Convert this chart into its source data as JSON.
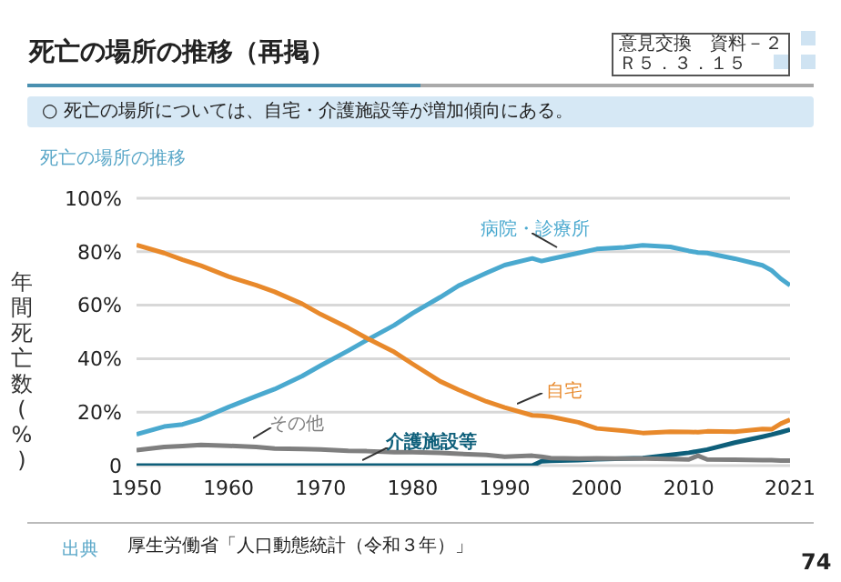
{
  "chart_data": {
    "type": "line",
    "title": "死亡の場所の推移（再掲）",
    "subtitle": "○ 死亡の場所については、自宅・介護施設等が増加傾向にある。",
    "ylabel": "年間死亡数(%)",
    "annotations": [
      "死亡の場所の推移",
      "意見交換　資料－２",
      "Ｒ５．３．１５",
      "出典",
      "厚生労働省「人口動態統計（令和３年）」",
      "74"
    ],
    "x": [
      1950,
      1953,
      1955,
      1957,
      1960,
      1963,
      1965,
      1968,
      1970,
      1973,
      1975,
      1978,
      1980,
      1983,
      1985,
      1988,
      1990,
      1993,
      1994,
      1995,
      1998,
      2000,
      2003,
      2005,
      2008,
      2010,
      2011,
      2012,
      2015,
      2018,
      2019,
      2020,
      2021
    ],
    "series": [
      {
        "name": "病院・診療所",
        "color": "#4aa9cf",
        "values": [
          11.7,
          14.6,
          15.4,
          17.5,
          21.9,
          26.0,
          28.6,
          33.5,
          37.4,
          43.0,
          46.9,
          52.5,
          57.0,
          63.0,
          67.3,
          72.0,
          75.0,
          77.5,
          76.5,
          77.3,
          79.5,
          81.0,
          81.6,
          82.4,
          81.8,
          80.3,
          79.7,
          79.5,
          77.4,
          74.9,
          73.0,
          69.9,
          67.4
        ]
      },
      {
        "name": "自宅",
        "color": "#e8892b",
        "values": [
          82.5,
          79.5,
          77.0,
          74.8,
          70.7,
          67.5,
          65.0,
          60.5,
          56.6,
          51.5,
          47.7,
          42.5,
          38.0,
          31.5,
          28.3,
          24.0,
          21.7,
          18.8,
          18.6,
          18.3,
          16.2,
          13.9,
          13.0,
          12.2,
          12.7,
          12.6,
          12.5,
          12.8,
          12.7,
          13.7,
          13.6,
          15.7,
          17.2
        ]
      },
      {
        "name": "介護施設等",
        "color": "#0e5f7a",
        "values": [
          0,
          0,
          0,
          0,
          0,
          0,
          0,
          0,
          0,
          0,
          0,
          0,
          0,
          0,
          0,
          0,
          0,
          0,
          1.6,
          1.8,
          2.0,
          2.4,
          2.6,
          2.8,
          4.0,
          4.8,
          5.4,
          6.0,
          8.6,
          10.8,
          11.6,
          12.5,
          13.5
        ]
      },
      {
        "name": "その他",
        "color": "#7f7f7f",
        "values": [
          5.8,
          7.0,
          7.3,
          7.7,
          7.4,
          7.0,
          6.4,
          6.2,
          6.0,
          5.5,
          5.4,
          5.0,
          5.0,
          4.8,
          4.4,
          4.0,
          3.3,
          3.7,
          3.3,
          2.8,
          2.6,
          2.7,
          2.6,
          2.6,
          2.5,
          2.3,
          3.7,
          2.3,
          2.2,
          2.0,
          2.0,
          1.9,
          1.9
        ]
      }
    ],
    "xlim": [
      1950,
      2021
    ],
    "xticks": [
      1950,
      1960,
      1970,
      1980,
      1990,
      2000,
      2010,
      2021
    ],
    "ylim": [
      0,
      100
    ],
    "yticks": [
      0,
      {
        "value": 20,
        "label": "20%"
      },
      {
        "value": 40,
        "label": "40%"
      },
      {
        "value": 60,
        "label": "60%"
      },
      {
        "value": 80,
        "label": "80%"
      },
      {
        "value": 100,
        "label": "100%"
      }
    ],
    "grid": "y",
    "marker": "none",
    "line_style": "solid"
  }
}
